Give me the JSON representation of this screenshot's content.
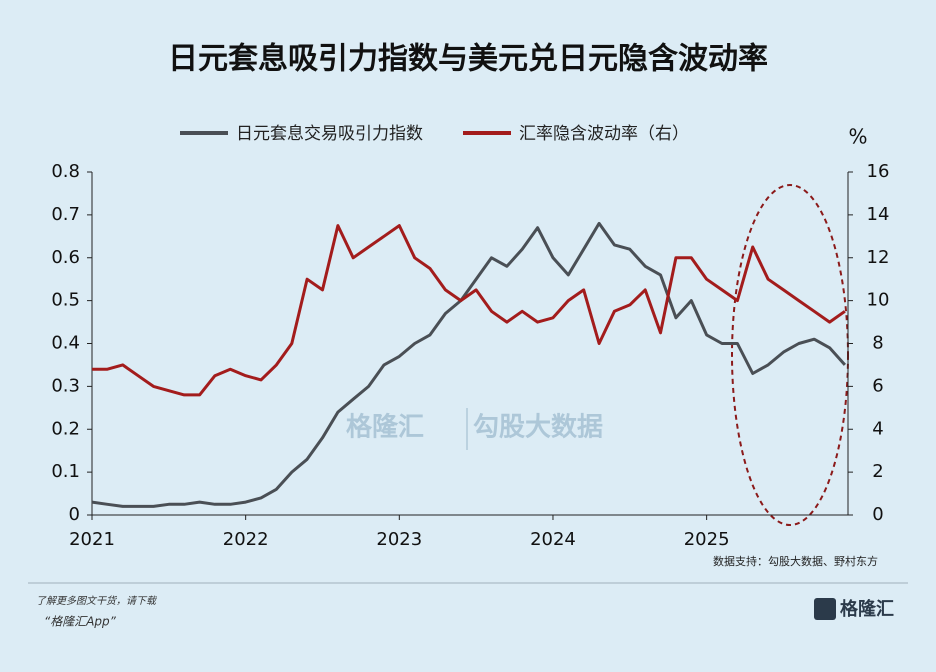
{
  "chart_data": {
    "type": "line",
    "title": "日元套息吸引力指数与美元兑日元隐含波动率",
    "y2_unit": "%",
    "source": "数据支持：勾股大数据、野村东方",
    "watermarks": [
      "格隆汇",
      "勾股大数据"
    ],
    "x": [
      2021.0,
      2021.1,
      2021.2,
      2021.3,
      2021.4,
      2021.5,
      2021.6,
      2021.7,
      2021.8,
      2021.9,
      2022.0,
      2022.1,
      2022.2,
      2022.3,
      2022.4,
      2022.5,
      2022.6,
      2022.7,
      2022.8,
      2022.9,
      2023.0,
      2023.1,
      2023.2,
      2023.3,
      2023.4,
      2023.5,
      2023.6,
      2023.7,
      2023.8,
      2023.9,
      2024.0,
      2024.1,
      2024.2,
      2024.3,
      2024.4,
      2024.5,
      2024.6,
      2024.7,
      2024.8,
      2024.9,
      2025.0,
      2025.1,
      2025.2,
      2025.3,
      2025.4,
      2025.5,
      2025.6,
      2025.7,
      2025.8,
      2025.9
    ],
    "xlim": [
      2021,
      2025.92
    ],
    "xticks": [
      2021,
      2022,
      2023,
      2024,
      2025
    ],
    "ylim": [
      0,
      0.8
    ],
    "yticks": [
      0,
      0.1,
      0.2,
      0.3,
      0.4,
      0.5,
      0.6,
      0.7,
      0.8
    ],
    "y2lim": [
      0,
      16
    ],
    "y2ticks": [
      0,
      2,
      4,
      6,
      8,
      10,
      12,
      14,
      16
    ],
    "legend_position": "top",
    "series": [
      {
        "name": "日元套息交易吸引力指数",
        "color": "#4a4f55",
        "values": [
          0.03,
          0.025,
          0.02,
          0.02,
          0.02,
          0.025,
          0.025,
          0.03,
          0.025,
          0.025,
          0.03,
          0.04,
          0.06,
          0.1,
          0.13,
          0.18,
          0.24,
          0.27,
          0.3,
          0.35,
          0.37,
          0.4,
          0.42,
          0.47,
          0.5,
          0.55,
          0.6,
          0.58,
          0.62,
          0.67,
          0.6,
          0.56,
          0.62,
          0.68,
          0.63,
          0.62,
          0.58,
          0.56,
          0.46,
          0.5,
          0.42,
          0.4,
          0.4,
          0.33,
          0.35,
          0.38,
          0.4,
          0.41,
          0.39,
          0.35
        ]
      },
      {
        "name": "汇率隐含波动率（右）",
        "color": "#a31c1c",
        "axis": "y2",
        "values": [
          6.8,
          6.8,
          7.0,
          6.5,
          6.0,
          5.8,
          5.6,
          5.6,
          6.5,
          6.8,
          6.5,
          6.3,
          7.0,
          8.0,
          11.0,
          10.5,
          13.5,
          12.0,
          12.5,
          13.0,
          13.5,
          12.0,
          11.5,
          10.5,
          10.0,
          10.5,
          9.5,
          9.0,
          9.5,
          9.0,
          9.2,
          10.0,
          10.5,
          8.0,
          9.5,
          9.8,
          10.5,
          8.5,
          12.0,
          12.0,
          11.0,
          10.5,
          10.0,
          12.5,
          11.0,
          10.5,
          10.0,
          9.5,
          9.0,
          9.5
        ]
      }
    ]
  },
  "footer": {
    "note": "了解更多图文干货，请下载",
    "app": "“格隆汇App”",
    "logo": "格隆汇"
  }
}
